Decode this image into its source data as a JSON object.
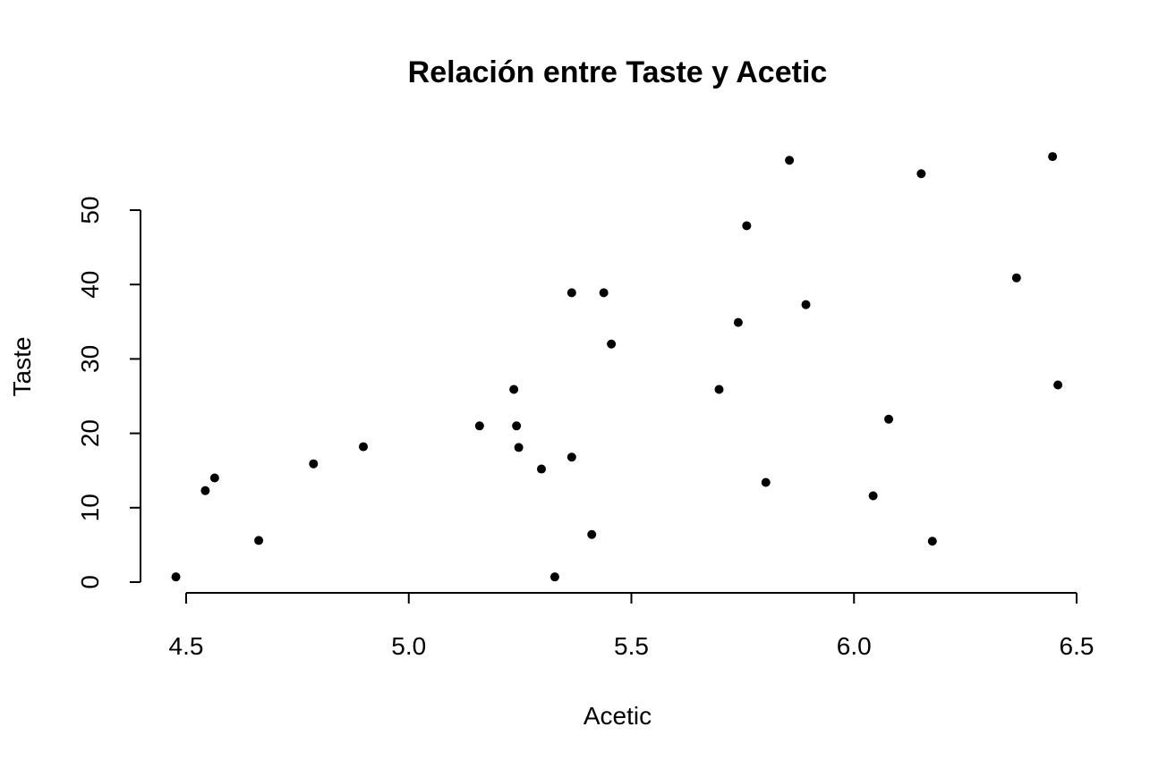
{
  "chart_data": {
    "type": "scatter",
    "title": "Relación entre Taste y Acetic",
    "xlabel": "Acetic",
    "ylabel": "Taste",
    "xlim": [
      4.4,
      6.5
    ],
    "ylim": [
      0,
      57.5
    ],
    "x_ticks": [
      4.5,
      5.0,
      5.5,
      6.0,
      6.5
    ],
    "x_tick_labels": [
      "4.5",
      "5.0",
      "5.5",
      "6.0",
      "6.5"
    ],
    "y_ticks": [
      0,
      10,
      20,
      30,
      40,
      50
    ],
    "y_tick_labels": [
      "0",
      "10",
      "20",
      "30",
      "40",
      "50"
    ],
    "grid": false,
    "legend": "none",
    "point_color": "#000000",
    "points": [
      {
        "x": 4.477,
        "y": 0.7
      },
      {
        "x": 4.543,
        "y": 12.3
      },
      {
        "x": 4.564,
        "y": 14.0
      },
      {
        "x": 4.663,
        "y": 5.6
      },
      {
        "x": 4.786,
        "y": 15.9
      },
      {
        "x": 4.898,
        "y": 18.2
      },
      {
        "x": 5.159,
        "y": 21.0
      },
      {
        "x": 5.236,
        "y": 25.9
      },
      {
        "x": 5.242,
        "y": 21.0
      },
      {
        "x": 5.247,
        "y": 18.1
      },
      {
        "x": 5.298,
        "y": 15.2
      },
      {
        "x": 5.328,
        "y": 0.7
      },
      {
        "x": 5.366,
        "y": 38.9
      },
      {
        "x": 5.366,
        "y": 16.8
      },
      {
        "x": 5.411,
        "y": 6.4
      },
      {
        "x": 5.438,
        "y": 38.9
      },
      {
        "x": 5.455,
        "y": 32.0
      },
      {
        "x": 5.697,
        "y": 25.9
      },
      {
        "x": 5.74,
        "y": 34.9
      },
      {
        "x": 5.759,
        "y": 47.9
      },
      {
        "x": 5.802,
        "y": 13.4
      },
      {
        "x": 5.855,
        "y": 56.7
      },
      {
        "x": 5.892,
        "y": 37.3
      },
      {
        "x": 6.043,
        "y": 11.6
      },
      {
        "x": 6.078,
        "y": 21.9
      },
      {
        "x": 6.151,
        "y": 54.9
      },
      {
        "x": 6.176,
        "y": 5.5
      },
      {
        "x": 6.365,
        "y": 40.9
      },
      {
        "x": 6.446,
        "y": 57.2
      },
      {
        "x": 6.458,
        "y": 26.5
      }
    ]
  }
}
